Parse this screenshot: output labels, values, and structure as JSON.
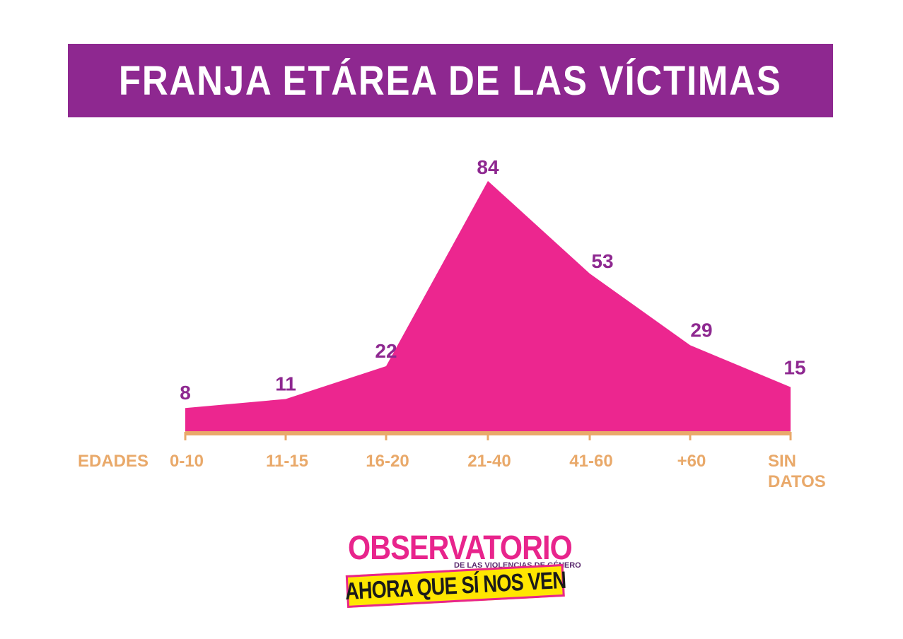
{
  "colors": {
    "title_bg": "#8e2890",
    "area_fill": "#ec268f",
    "data_label": "#8e2890",
    "axis": "#e9a96a",
    "tick_label": "#e9a96a",
    "logo_pink": "#e8248c",
    "logo_yellow": "#ffe600"
  },
  "chart_data": {
    "type": "area",
    "title": "FRANJA ETÁREA DE LAS VÍCTIMAS",
    "xlabel": "EDADES",
    "categories": [
      "0-10",
      "11-15",
      "16-20",
      "21-40",
      "41-60",
      "+60",
      "SIN DATOS"
    ],
    "values": [
      8,
      11,
      22,
      84,
      53,
      29,
      15
    ],
    "ylim": [
      0,
      84
    ],
    "grid": false,
    "legend": "none"
  },
  "logo": {
    "line1": "OBSERVATORIO",
    "subtitle": "DE LAS VIOLENCIAS DE GÉNERO",
    "line2": "AHORA QUE SÍ NOS VEN"
  }
}
